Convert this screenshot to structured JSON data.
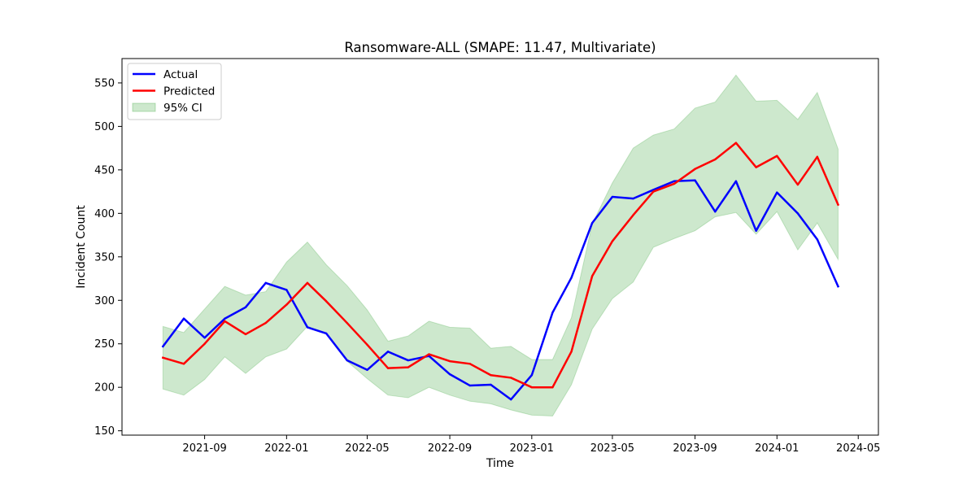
{
  "chart_data": {
    "type": "line",
    "title": "Ransomware-ALL (SMAPE: 11.47, Multivariate)",
    "xlabel": "Time",
    "ylabel": "Incident Count",
    "x": [
      "2021-07",
      "2021-08",
      "2021-09",
      "2021-10",
      "2021-11",
      "2021-12",
      "2022-01",
      "2022-02",
      "2022-03",
      "2022-04",
      "2022-05",
      "2022-06",
      "2022-07",
      "2022-08",
      "2022-09",
      "2022-10",
      "2022-11",
      "2022-12",
      "2023-01",
      "2023-02",
      "2023-03",
      "2023-04",
      "2023-05",
      "2023-06",
      "2023-07",
      "2023-08",
      "2023-09",
      "2023-10",
      "2023-11",
      "2023-12",
      "2024-01",
      "2024-02",
      "2024-03",
      "2024-04"
    ],
    "xticks": [
      "2021-09",
      "2022-01",
      "2022-05",
      "2022-09",
      "2023-01",
      "2023-05",
      "2023-09",
      "2024-01",
      "2024-05"
    ],
    "xlim": [
      "2021-05-01",
      "2024-05-31"
    ],
    "yticks": [
      150,
      200,
      250,
      300,
      350,
      400,
      450,
      500,
      550
    ],
    "ylim": [
      145,
      578
    ],
    "grid": false,
    "legend_position": "top-left",
    "series": [
      {
        "name": "Actual",
        "color": "#0000ff",
        "values": [
          247,
          279,
          257,
          279,
          292,
          320,
          312,
          269,
          262,
          231,
          220,
          241,
          231,
          236,
          215,
          202,
          203,
          186,
          214,
          286,
          326,
          389,
          419,
          417,
          427,
          437,
          438,
          402,
          437,
          380,
          424,
          400,
          370,
          316
        ]
      },
      {
        "name": "Predicted",
        "color": "#ff0000",
        "values": [
          234,
          227,
          250,
          276,
          261,
          274,
          295,
          320,
          299,
          274,
          249,
          222,
          223,
          238,
          230,
          227,
          214,
          211,
          200,
          200,
          241,
          328,
          368,
          398,
          425,
          434,
          451,
          462,
          481,
          453,
          466,
          433,
          465,
          410
        ]
      }
    ],
    "confidence_band": {
      "name": "95% CI",
      "color": "#2ca02c",
      "lower": [
        198,
        191,
        209,
        235,
        216,
        235,
        244,
        270,
        262,
        230,
        210,
        191,
        188,
        200,
        191,
        184,
        181,
        174,
        168,
        167,
        203,
        267,
        302,
        321,
        361,
        371,
        380,
        396,
        401,
        376,
        402,
        358,
        389,
        347
      ],
      "upper": [
        270,
        263,
        290,
        316,
        306,
        310,
        344,
        367,
        341,
        317,
        289,
        253,
        259,
        276,
        269,
        268,
        245,
        247,
        232,
        232,
        280,
        388,
        435,
        475,
        490,
        497,
        521,
        528,
        559,
        529,
        530,
        508,
        539,
        474
      ]
    }
  }
}
